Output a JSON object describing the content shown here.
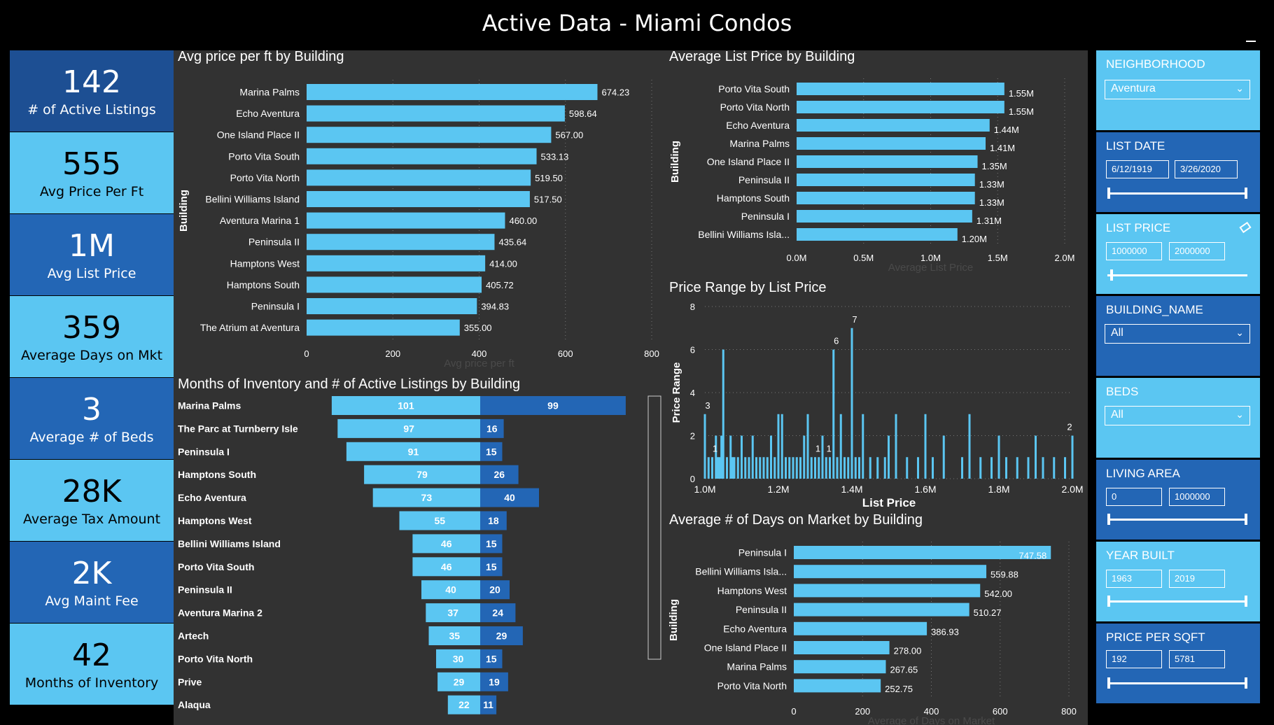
{
  "title": "Active Data - Miami Condos",
  "kpis": [
    {
      "value": "142",
      "label": "# of Active Listings"
    },
    {
      "value": "555",
      "label": "Avg Price Per Ft"
    },
    {
      "value": "1M",
      "label": "Avg List Price"
    },
    {
      "value": "359",
      "label": "Average Days on Mkt"
    },
    {
      "value": "3",
      "label": "Average # of Beds"
    },
    {
      "value": "28K",
      "label": "Average Tax Amount"
    },
    {
      "value": "2K",
      "label": "Avg Maint Fee"
    },
    {
      "value": "42",
      "label": "Months of Inventory"
    }
  ],
  "slicers": {
    "neighborhood": {
      "label": "NEIGHBORHOOD",
      "value": "Aventura"
    },
    "list_date": {
      "label": "LIST DATE",
      "from": "6/12/1919",
      "to": "3/26/2020"
    },
    "list_price": {
      "label": "LIST PRICE",
      "from": "1000000",
      "to": "2000000"
    },
    "building_name": {
      "label": "BUILDING_NAME",
      "value": "All"
    },
    "beds": {
      "label": "BEDS",
      "value": "All"
    },
    "living_area": {
      "label": "LIVING AREA",
      "from": "0",
      "to": "1000000"
    },
    "year_built": {
      "label": "YEAR BUILT",
      "from": "1963",
      "to": "2019"
    },
    "price_per_sqft": {
      "label": "PRICE PER SQFT",
      "from": "192",
      "to": "5781"
    }
  },
  "chart_data": [
    {
      "id": "ppf",
      "type": "bar",
      "orientation": "horizontal",
      "title": "Avg price per ft by Building",
      "xlabel": "Avg price per ft",
      "ylabel": "Building",
      "categories": [
        "Marina Palms",
        "Echo Aventura",
        "One Island Place II",
        "Porto Vita South",
        "Porto Vita North",
        "Bellini Williams Island",
        "Aventura Marina 1",
        "Peninsula II",
        "Hamptons West",
        "Hamptons South",
        "Peninsula I",
        "The Atrium at Aventura"
      ],
      "values": [
        674.23,
        598.64,
        567.0,
        533.13,
        519.5,
        517.5,
        460.0,
        435.64,
        414.0,
        405.72,
        394.83,
        355.0
      ],
      "data_labels": [
        "674.23",
        "598.64",
        "567.00",
        "533.13",
        "519.50",
        "517.50",
        "460.00",
        "435.64",
        "414.00",
        "405.72",
        "394.83",
        "355.00"
      ],
      "xlim": [
        0,
        800
      ],
      "xticks": [
        "0",
        "200",
        "400",
        "600",
        "800"
      ],
      "color": "#5bc6f2"
    },
    {
      "id": "alp",
      "type": "bar",
      "orientation": "horizontal",
      "title": "Average List Price by Building",
      "xlabel": "Average List Price",
      "ylabel": "Building",
      "categories": [
        "Porto Vita South",
        "Porto Vita North",
        "Echo Aventura",
        "Marina Palms",
        "One Island Place II",
        "Peninsula II",
        "Hamptons South",
        "Peninsula I",
        "Bellini Williams Isla..."
      ],
      "values": [
        1.55,
        1.55,
        1.44,
        1.41,
        1.35,
        1.33,
        1.33,
        1.31,
        1.2
      ],
      "data_labels": [
        "1.55M",
        "1.55M",
        "1.44M",
        "1.41M",
        "1.35M",
        "1.33M",
        "1.33M",
        "1.31M",
        "1.20M"
      ],
      "xlim": [
        0,
        2.0
      ],
      "xticks": [
        "0.0M",
        "0.5M",
        "1.0M",
        "1.5M",
        "2.0M"
      ],
      "color": "#5bc6f2"
    },
    {
      "id": "prange",
      "type": "bar",
      "title": "Price Range by List Price",
      "xlabel": "List Price",
      "ylabel": "Price Range",
      "x": [
        1.0,
        1.01,
        1.02,
        1.03,
        1.035,
        1.04,
        1.045,
        1.05,
        1.06,
        1.07,
        1.075,
        1.08,
        1.09,
        1.1,
        1.11,
        1.12,
        1.13,
        1.14,
        1.15,
        1.16,
        1.17,
        1.18,
        1.19,
        1.2,
        1.21,
        1.22,
        1.23,
        1.24,
        1.25,
        1.26,
        1.27,
        1.28,
        1.29,
        1.3,
        1.31,
        1.32,
        1.33,
        1.34,
        1.35,
        1.36,
        1.37,
        1.38,
        1.39,
        1.4,
        1.41,
        1.42,
        1.43,
        1.45,
        1.47,
        1.49,
        1.5,
        1.52,
        1.55,
        1.58,
        1.6,
        1.62,
        1.65,
        1.7,
        1.72,
        1.75,
        1.78,
        1.8,
        1.82,
        1.85,
        1.88,
        1.9,
        1.92,
        1.95,
        1.98,
        2.0
      ],
      "values": [
        3,
        1,
        1,
        2,
        1,
        1,
        2,
        6,
        1,
        2,
        1,
        1,
        1,
        2,
        1,
        1,
        2,
        1,
        1,
        1,
        1,
        2,
        1,
        3,
        3,
        1,
        1,
        1,
        1,
        1,
        2,
        3,
        1,
        1,
        1,
        2,
        1,
        1,
        6,
        1,
        3,
        1,
        1,
        7,
        1,
        1,
        3,
        1,
        1,
        1,
        2,
        3,
        1,
        1,
        3,
        1,
        2,
        1,
        3,
        1,
        1,
        2,
        1,
        1,
        1,
        2,
        1,
        1,
        1,
        2
      ],
      "data_labels": [
        {
          "x": 1.0,
          "text": "3"
        },
        {
          "x": 1.02,
          "text": "1"
        },
        {
          "x": 1.3,
          "text": "1"
        },
        {
          "x": 1.33,
          "text": "1"
        },
        {
          "x": 1.35,
          "text": "6"
        },
        {
          "x": 1.4,
          "text": "7"
        },
        {
          "x": 2.0,
          "text": "2"
        }
      ],
      "xlim": [
        1.0,
        2.0
      ],
      "ylim": [
        0,
        8
      ],
      "xticks": [
        "1.0M",
        "1.2M",
        "1.4M",
        "1.6M",
        "1.8M",
        "2.0M"
      ],
      "yticks": [
        "0",
        "2",
        "4",
        "6",
        "8"
      ],
      "color": "#5bc6f2"
    },
    {
      "id": "inv",
      "type": "bar",
      "orientation": "horizontal-diverging",
      "title": "Months of Inventory and # of Active Listings by Building",
      "categories": [
        "Marina Palms",
        "The Parc at Turnberry Isle",
        "Peninsula I",
        "Hamptons South",
        "Echo Aventura",
        "Hamptons West",
        "Bellini Williams Island",
        "Porto Vita South",
        "Peninsula II",
        "Aventura Marina 2",
        "Artech",
        "Porto Vita North",
        "Prive",
        "Alaqua"
      ],
      "series": [
        {
          "values": [
            101,
            97,
            91,
            79,
            73,
            55,
            46,
            46,
            40,
            37,
            35,
            30,
            29,
            22
          ],
          "color": "#5bc6f2"
        },
        {
          "values": [
            99,
            16,
            15,
            26,
            40,
            18,
            15,
            15,
            20,
            24,
            29,
            15,
            19,
            11
          ],
          "color": "#2366b5"
        }
      ]
    },
    {
      "id": "dom",
      "type": "bar",
      "orientation": "horizontal",
      "title": "Average # of Days on Market by Building",
      "xlabel": "Average of Days on Market",
      "ylabel": "Building",
      "categories": [
        "Peninsula I",
        "Bellini Williams Isla...",
        "Hamptons West",
        "Peninsula II",
        "Echo Aventura",
        "One Island Place II",
        "Marina Palms",
        "Porto Vita North"
      ],
      "values": [
        747.58,
        559.88,
        542.0,
        510.27,
        386.93,
        278.0,
        267.65,
        252.75
      ],
      "data_labels": [
        "747.58",
        "559.88",
        "542.00",
        "510.27",
        "386.93",
        "278.00",
        "267.65",
        "252.75"
      ],
      "xlim": [
        0,
        800
      ],
      "xticks": [
        "0",
        "200",
        "400",
        "600",
        "800"
      ],
      "color": "#5bc6f2"
    }
  ]
}
